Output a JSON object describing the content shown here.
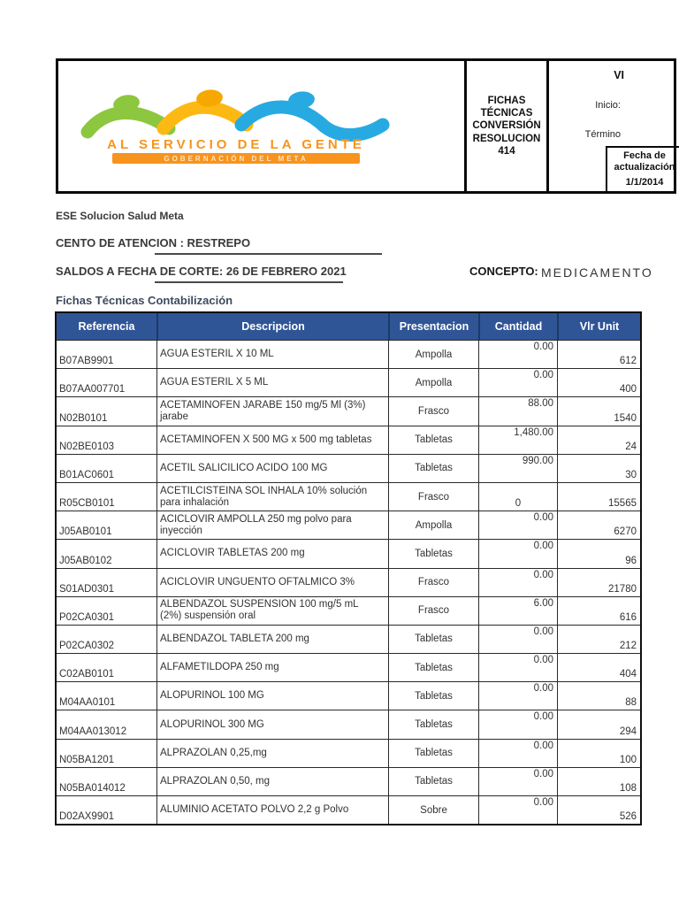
{
  "letterhead": {
    "logo": {
      "line1": "AL SERVICIO DE LA GENTE",
      "line2": "GOBERNACIÓN DEL META",
      "colors": {
        "green": "#8DC63F",
        "yellow": "#FDB913",
        "blue": "#27AAE1",
        "orange": "#F7941D"
      }
    },
    "fichas_cell": {
      "lines": [
        "FICHAS",
        "TÉCNICAS",
        "CONVERSIÓN",
        "RESOLUCION",
        "414"
      ]
    },
    "right_cell": {
      "truncated_title": "VI",
      "inicio_label": "Inicio:",
      "termino_label": "Término"
    },
    "fecha_box": {
      "label": "Fecha de actualización",
      "value": "1/1/2014"
    }
  },
  "info": {
    "entity": "ESE Solucion Salud Meta",
    "centro_line": "CENTO DE ATENCION : RESTREPO",
    "saldos_line": "SALDOS A FECHA DE CORTE: 26 DE FEBRERO 2021",
    "concepto_label": "CONCEPTO:",
    "concepto_value": "MEDICAMENTO",
    "table_title": "Fichas Técnicas Contabilización"
  },
  "table": {
    "columns": [
      "Referencia",
      "Descripcion",
      "Presentacion",
      "Cantidad",
      "Vlr Unit"
    ],
    "header_bg": "#2F5597",
    "rows": [
      {
        "ref": "B07AB9901",
        "desc": "AGUA ESTERIL X 10 ML",
        "pres": "Ampolla",
        "cant": "0.00",
        "cant_pos": "top",
        "vlr": "612"
      },
      {
        "ref": "B07AA007701",
        "desc": "AGUA ESTERIL X 5 ML",
        "pres": "Ampolla",
        "cant": "0.00",
        "cant_pos": "top",
        "vlr": "400"
      },
      {
        "ref": "N02B0101",
        "desc": "ACETAMINOFEN JARABE 150 mg/5 Ml (3%) jarabe",
        "pres": "Frasco",
        "cant": "88.00",
        "cant_pos": "top",
        "vlr": "1540"
      },
      {
        "ref": "N02BE0103",
        "desc": "ACETAMINOFEN X 500 MG x 500 mg tabletas",
        "pres": "Tabletas",
        "cant": "1,480.00",
        "cant_pos": "top",
        "vlr": "24"
      },
      {
        "ref": "B01AC0601",
        "desc": "ACETIL SALICILICO ACIDO 100 MG",
        "pres": "Tabletas",
        "cant": "990.00",
        "cant_pos": "top",
        "vlr": "30"
      },
      {
        "ref": "R05CB0101",
        "desc": "ACETILCISTEINA SOL INHALA 10% solución para inhalación",
        "pres": "Frasco",
        "cant": "0",
        "cant_pos": "bottom",
        "vlr": "15565"
      },
      {
        "ref": "J05AB0101",
        "desc": "ACICLOVIR AMPOLLA 250 mg polvo para inyección",
        "pres": "Ampolla",
        "cant": "0.00",
        "cant_pos": "top",
        "vlr": "6270"
      },
      {
        "ref": "J05AB0102",
        "desc": "ACICLOVIR TABLETAS 200 mg",
        "pres": "Tabletas",
        "cant": "0.00",
        "cant_pos": "top",
        "vlr": "96"
      },
      {
        "ref": "S01AD0301",
        "desc": "ACICLOVIR UNGUENTO OFTALMICO 3%",
        "pres": "Frasco",
        "cant": "0.00",
        "cant_pos": "top",
        "vlr": "21780"
      },
      {
        "ref": "P02CA0301",
        "desc": "ALBENDAZOL SUSPENSION 100 mg/5 mL (2%) suspensión oral",
        "pres": "Frasco",
        "cant": "6.00",
        "cant_pos": "top",
        "vlr": "616"
      },
      {
        "ref": "P02CA0302",
        "desc": "ALBENDAZOL TABLETA 200 mg",
        "pres": "Tabletas",
        "cant": "0.00",
        "cant_pos": "top",
        "vlr": "212"
      },
      {
        "ref": "C02AB0101",
        "desc": "ALFAMETILDOPA 250 mg",
        "pres": "Tabletas",
        "cant": "0.00",
        "cant_pos": "top",
        "vlr": "404"
      },
      {
        "ref": "M04AA0101",
        "desc": "ALOPURINOL 100 MG",
        "pres": "Tabletas",
        "cant": "0.00",
        "cant_pos": "top",
        "vlr": "88"
      },
      {
        "ref": "M04AA013012",
        "desc": "ALOPURINOL 300 MG",
        "pres": "Tabletas",
        "cant": "0.00",
        "cant_pos": "top",
        "vlr": "294"
      },
      {
        "ref": "N05BA1201",
        "desc": "ALPRAZOLAN 0,25,mg",
        "pres": "Tabletas",
        "cant": "0.00",
        "cant_pos": "top",
        "vlr": "100"
      },
      {
        "ref": "N05BA014012",
        "desc": "ALPRAZOLAN 0,50, mg",
        "pres": "Tabletas",
        "cant": "0.00",
        "cant_pos": "top",
        "vlr": "108"
      },
      {
        "ref": "D02AX9901",
        "desc": "ALUMINIO ACETATO POLVO 2,2 g Polvo",
        "pres": "Sobre",
        "cant": "0.00",
        "cant_pos": "top",
        "vlr": "526"
      }
    ]
  }
}
